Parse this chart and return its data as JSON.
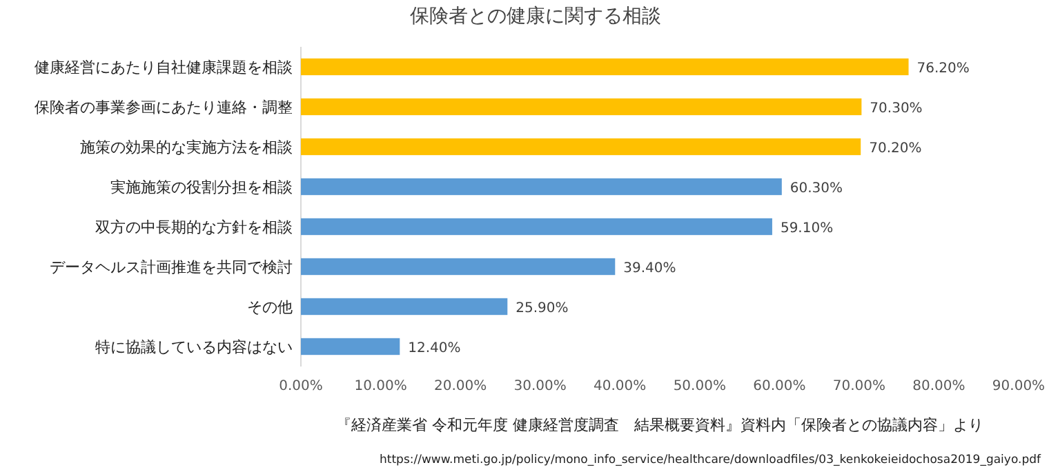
{
  "chart_data": {
    "type": "bar",
    "orientation": "horizontal",
    "title": "保険者との健康に関する相談",
    "categories": [
      "健康経営にあたり自社健康課題を相談",
      "保険者の事業参画にあたり連絡・調整",
      "施策の効果的な実施方法を相談",
      "実施施策の役割分担を相談",
      "双方の中長期的な方針を相談",
      "データヘルス計画推進を共同で検討",
      "その他",
      "特に協議している内容はない"
    ],
    "values": [
      76.2,
      70.3,
      70.2,
      60.3,
      59.1,
      39.4,
      25.9,
      12.4
    ],
    "colors": [
      "#ffc000",
      "#ffc000",
      "#ffc000",
      "#5b9bd5",
      "#5b9bd5",
      "#5b9bd5",
      "#5b9bd5",
      "#5b9bd5"
    ],
    "value_labels": [
      "76.20%",
      "70.30%",
      "70.20%",
      "60.30%",
      "59.10%",
      "39.40%",
      "25.90%",
      "12.40%"
    ],
    "xlim": [
      0,
      90
    ],
    "xticks": [
      {
        "value": 0,
        "label": "0.00%"
      },
      {
        "value": 10,
        "label": "10.00%"
      },
      {
        "value": 20,
        "label": "20.00%"
      },
      {
        "value": 30,
        "label": "30.00%"
      },
      {
        "value": 40,
        "label": "40.00%"
      },
      {
        "value": 50,
        "label": "50.00%"
      },
      {
        "value": 60,
        "label": "60.00%"
      },
      {
        "value": 70,
        "label": "70.00%"
      },
      {
        "value": 80,
        "label": "80.00%"
      },
      {
        "value": 90,
        "label": "90.00%"
      }
    ],
    "grid": false,
    "annotations": [
      "『経済産業省 令和元年度 健康経営度調査　結果概要資料』資料内「保険者との協議内容」より",
      "https://www.meti.go.jp/policy/mono_info_service/healthcare/downloadfiles/03_kenkokeieidochosa2019_gaiyo.pdf"
    ]
  }
}
